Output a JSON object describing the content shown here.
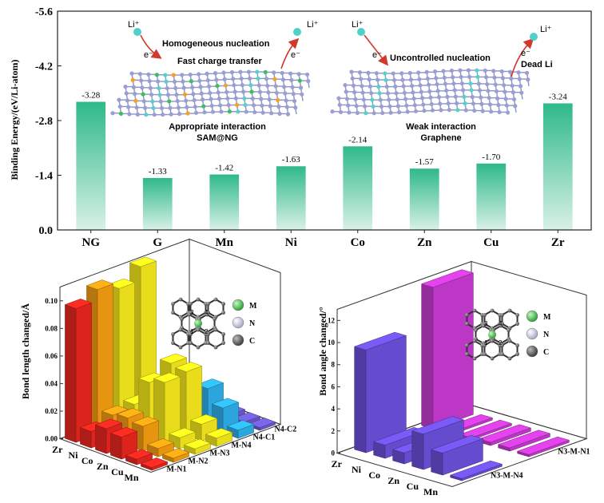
{
  "chart_data": [
    {
      "type": "bar",
      "ylabel": "Binding Energy/(eV/Li-atom)",
      "ylim": [
        0,
        -5.6
      ],
      "yticks": [
        "-5.6",
        "-4.2",
        "-2.8",
        "-1.4",
        "0.0"
      ],
      "categories": [
        "NG",
        "G",
        "Mn",
        "Ni",
        "Co",
        "Zn",
        "Cu",
        "Zr"
      ],
      "values": [
        -3.28,
        -1.33,
        -1.42,
        -1.63,
        -2.14,
        -1.57,
        -1.7,
        -3.24
      ],
      "value_labels": [
        "-3.28",
        "-1.33",
        "-1.42",
        "-1.63",
        "-2.14",
        "-1.57",
        "-1.70",
        "-3.24"
      ],
      "bar_color_top": "#2fb98a",
      "bar_color_bottom": "#d8f1e6",
      "annotations": {
        "left": {
          "li_label": "Li⁺",
          "li2_label": "Li⁺",
          "e_label": "e⁻",
          "e2_label": "e⁻",
          "line1": "Homogeneous nucleation",
          "line2": "Fast charge transfer",
          "line3": "Appropriate interaction",
          "line4": "SAM@NG"
        },
        "right": {
          "li_label": "Li⁺",
          "li2_label": "Li⁺",
          "e_label": "e⁻",
          "e2_label": "e⁻",
          "line1": "Uncontrolled nucleation",
          "line2": "Dead Li",
          "line3": "Weak interaction",
          "line4": "Graphene"
        }
      }
    },
    {
      "type": "bar3d",
      "zlabel": "Bond length changed/Å",
      "zticks": [
        "0.00",
        "0.02",
        "0.04",
        "0.06",
        "0.08",
        "0.10"
      ],
      "metals": [
        "Zr",
        "Ni",
        "Co",
        "Zn",
        "Cu",
        "Mn"
      ],
      "bonds": [
        "M-N1",
        "M-N2",
        "M-N3",
        "M-N4",
        "N4-C1",
        "N4-C2"
      ],
      "series_colors": [
        "#e8261e",
        "#f39c12",
        "#f4e81c",
        "#f4e81c",
        "#2eaee8",
        "#6a5acd"
      ],
      "values": [
        [
          0.097,
          0.105,
          0.1,
          0.11,
          0.003,
          0.002
        ],
        [
          0.012,
          0.018,
          0.02,
          0.014,
          0.011,
          0.003
        ],
        [
          0.018,
          0.02,
          0.04,
          0.048,
          0.022,
          0.004
        ],
        [
          0.016,
          0.018,
          0.044,
          0.046,
          0.028,
          0.003
        ],
        [
          0.004,
          0.006,
          0.008,
          0.012,
          0.018,
          0.002
        ],
        [
          0.002,
          0.003,
          0.004,
          0.006,
          0.006,
          0.002
        ]
      ],
      "legend": [
        "M",
        "N",
        "C"
      ],
      "legend_colors": [
        "#35c23e",
        "#e8e8f4",
        "#555555"
      ],
      "inset_labels": [
        "1",
        "2",
        "3",
        "4"
      ]
    },
    {
      "type": "bar3d",
      "zlabel": "Bond angle changed/°",
      "zticks": [
        "0",
        "2",
        "4",
        "6",
        "8",
        "10",
        "12"
      ],
      "metals": [
        "Zr",
        "Ni",
        "Co",
        "Zn",
        "Cu",
        "Mn"
      ],
      "bonds": [
        "N3-M-N4",
        "N3-M-N1"
      ],
      "series_colors": [
        "#6a4fd8",
        "#c63ad0"
      ],
      "values": [
        [
          9.3,
          12.8
        ],
        [
          1.2,
          0.2
        ],
        [
          1.0,
          0.2
        ],
        [
          3.2,
          0.3
        ],
        [
          2.0,
          0.3
        ],
        [
          0.2,
          0.2
        ]
      ],
      "legend": [
        "M",
        "N",
        "C"
      ],
      "legend_colors": [
        "#35c23e",
        "#e8e8f4",
        "#555555"
      ],
      "inset_labels": [
        "1",
        "2",
        "3",
        "4"
      ]
    }
  ]
}
